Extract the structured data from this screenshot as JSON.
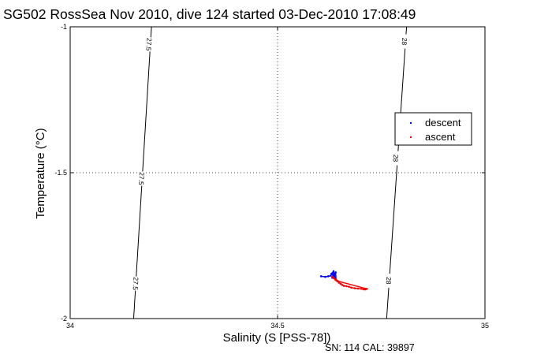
{
  "chart_data": {
    "type": "scatter",
    "title": "SG502 RossSea Nov 2010, dive 124 started 03-Dec-2010 17:08:49",
    "xlabel": "Salinity (S [PSS-78])",
    "ylabel": "Temperature (°C)",
    "xlim": [
      34,
      35
    ],
    "ylim": [
      -2,
      -1
    ],
    "xticks": [
      "34",
      "34.5",
      "35"
    ],
    "yticks": [
      "-2",
      "-1.5",
      "-1"
    ],
    "grid": true,
    "legend_position": "right",
    "footer": "SN: 114  CAL: 39897",
    "density_contours": [
      {
        "label": "27.5",
        "points": [
          [
            34.153,
            -2.0
          ],
          [
            34.196,
            -1.0
          ]
        ],
        "label_positions": [
          [
            34.158,
            -1.88
          ],
          [
            34.172,
            -1.52
          ],
          [
            34.19,
            -1.06
          ]
        ]
      },
      {
        "label": "28",
        "points": [
          [
            34.763,
            -2.0
          ],
          [
            34.811,
            -1.0
          ]
        ],
        "label_positions": [
          [
            34.768,
            -1.87
          ],
          [
            34.785,
            -1.45
          ],
          [
            34.806,
            -1.05
          ]
        ]
      }
    ],
    "series": [
      {
        "name": "descent",
        "color": "#0000ff",
        "points": [
          [
            34.605,
            -1.855
          ],
          [
            34.615,
            -1.857
          ],
          [
            34.622,
            -1.855
          ],
          [
            34.628,
            -1.853
          ],
          [
            34.631,
            -1.848
          ],
          [
            34.633,
            -1.843
          ],
          [
            34.635,
            -1.838
          ],
          [
            34.636,
            -1.845
          ],
          [
            34.637,
            -1.852
          ],
          [
            34.638,
            -1.858
          ],
          [
            34.639,
            -1.864
          ],
          [
            34.634,
            -1.851
          ],
          [
            34.632,
            -1.86
          ],
          [
            34.64,
            -1.842
          ],
          [
            34.641,
            -1.867
          ],
          [
            34.63,
            -1.846
          ]
        ]
      },
      {
        "name": "ascent",
        "color": "#ff0000",
        "points": [
          [
            34.632,
            -1.857
          ],
          [
            34.636,
            -1.862
          ],
          [
            34.64,
            -1.868
          ],
          [
            34.644,
            -1.872
          ],
          [
            34.648,
            -1.877
          ],
          [
            34.652,
            -1.881
          ],
          [
            34.656,
            -1.885
          ],
          [
            34.66,
            -1.888
          ],
          [
            34.666,
            -1.889
          ],
          [
            34.672,
            -1.891
          ],
          [
            34.678,
            -1.894
          ],
          [
            34.686,
            -1.896
          ],
          [
            34.694,
            -1.897
          ],
          [
            34.702,
            -1.898
          ],
          [
            34.708,
            -1.9
          ],
          [
            34.712,
            -1.9
          ],
          [
            34.715,
            -1.898
          ],
          [
            34.646,
            -1.872
          ],
          [
            34.641,
            -1.866
          ]
        ]
      }
    ]
  }
}
